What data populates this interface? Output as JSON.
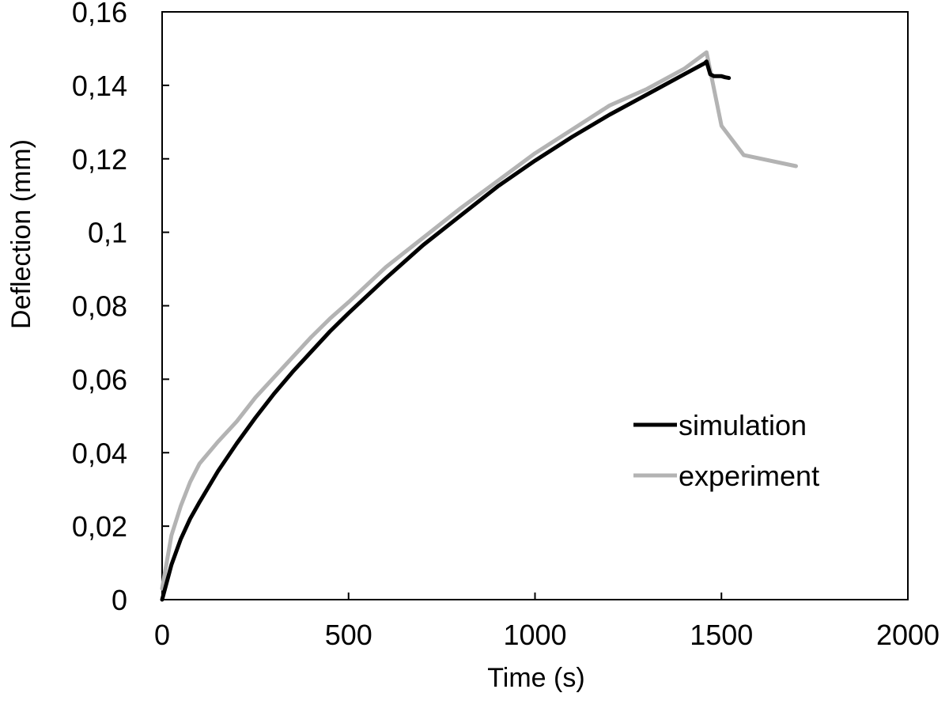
{
  "chart_data": {
    "type": "line",
    "title": "",
    "xlabel": "Time (s)",
    "ylabel": "Deflection (mm)",
    "xlim": [
      0,
      2000
    ],
    "ylim": [
      0,
      0.16
    ],
    "x_ticks": [
      0,
      500,
      1000,
      1500,
      2000
    ],
    "x_tick_labels": [
      "0",
      "500",
      "1000",
      "1500",
      "2000"
    ],
    "y_ticks": [
      0,
      0.02,
      0.04,
      0.06,
      0.08,
      0.1,
      0.12,
      0.14,
      0.16
    ],
    "y_tick_labels": [
      "0",
      "0,02",
      "0,04",
      "0,06",
      "0,08",
      "0,1",
      "0,12",
      "0,14",
      "0,16"
    ],
    "grid": false,
    "legend_position": "right",
    "series": [
      {
        "name": "simulation",
        "color": "#000000",
        "x": [
          0,
          25,
          50,
          75,
          100,
          150,
          200,
          250,
          300,
          350,
          400,
          450,
          500,
          600,
          700,
          800,
          900,
          1000,
          1100,
          1200,
          1300,
          1400,
          1455,
          1460,
          1470,
          1480,
          1500,
          1510,
          1520
        ],
        "y": [
          0,
          0.0095,
          0.0165,
          0.022,
          0.0265,
          0.035,
          0.0425,
          0.0495,
          0.056,
          0.062,
          0.0675,
          0.073,
          0.078,
          0.0875,
          0.0965,
          0.1045,
          0.1125,
          0.1195,
          0.126,
          0.132,
          0.1375,
          0.143,
          0.146,
          0.1465,
          0.143,
          0.1425,
          0.1425,
          0.1422,
          0.142
        ]
      },
      {
        "name": "experiment",
        "color": "#b3b3b3",
        "x": [
          0,
          25,
          50,
          75,
          100,
          150,
          200,
          250,
          300,
          350,
          400,
          450,
          500,
          600,
          700,
          800,
          900,
          1000,
          1100,
          1200,
          1300,
          1400,
          1460,
          1500,
          1560,
          1700
        ],
        "y": [
          0.003,
          0.0175,
          0.0255,
          0.032,
          0.037,
          0.043,
          0.0485,
          0.055,
          0.0605,
          0.066,
          0.0715,
          0.0765,
          0.081,
          0.0905,
          0.0985,
          0.1065,
          0.114,
          0.1215,
          0.128,
          0.1345,
          0.139,
          0.1445,
          0.149,
          0.129,
          0.121,
          0.118
        ]
      }
    ]
  }
}
